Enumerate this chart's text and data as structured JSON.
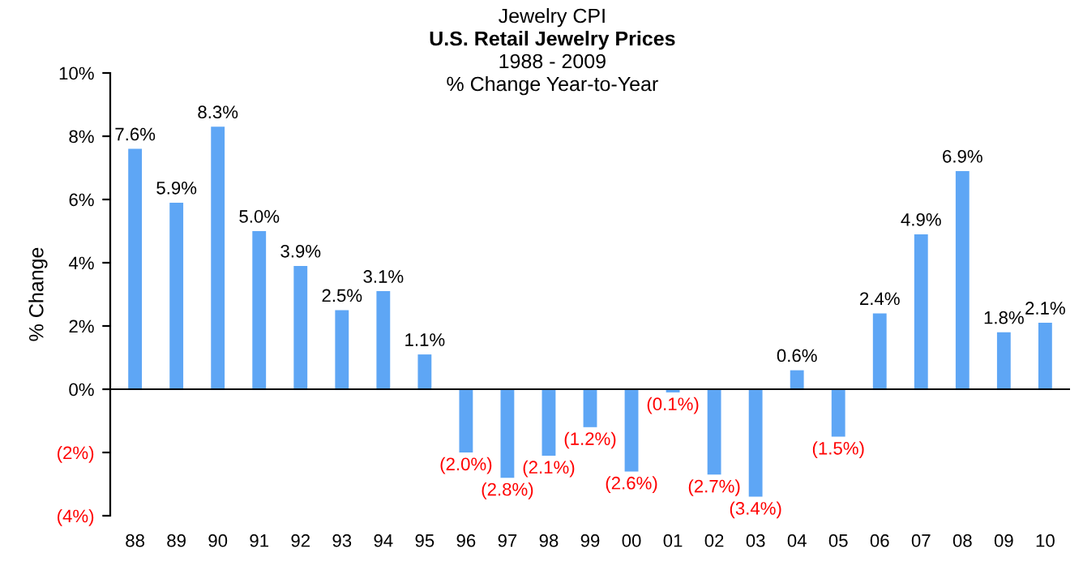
{
  "chart_data": {
    "type": "bar",
    "title": "U.S. Retail Jewelry Prices",
    "subtitle": "1988 - 2009\n% Change Year-to-Year",
    "annotations": [
      "Jewelry CPI"
    ],
    "ylabel": "% Change",
    "categories": [
      "88",
      "89",
      "90",
      "91",
      "92",
      "93",
      "94",
      "95",
      "96",
      "97",
      "98",
      "99",
      "00",
      "01",
      "02",
      "03",
      "04",
      "05",
      "06",
      "07",
      "08",
      "09",
      "10"
    ],
    "values": [
      7.6,
      5.9,
      8.3,
      5.0,
      3.9,
      2.5,
      3.1,
      1.1,
      -2.0,
      -2.8,
      -2.1,
      -1.2,
      -2.6,
      -0.1,
      -2.7,
      -3.4,
      0.6,
      -1.5,
      2.4,
      4.9,
      6.9,
      1.8,
      2.1
    ],
    "value_labels": [
      "7.6%",
      "5.9%",
      "8.3%",
      "5.0%",
      "3.9%",
      "2.5%",
      "3.1%",
      "1.1%",
      "(2.0%)",
      "(2.8%)",
      "(2.1%)",
      "(1.2%)",
      "(2.6%)",
      "(0.1%)",
      "(2.7%)",
      "(3.4%)",
      "0.6%",
      "(1.5%)",
      "2.4%",
      "4.9%",
      "6.9%",
      "1.8%",
      "2.1%"
    ],
    "color": "#5ea6f5",
    "ylim": [
      -4,
      10
    ],
    "yticks": [
      {
        "value": -4,
        "label": "(4%)"
      },
      {
        "value": -2,
        "label": "(2%)"
      },
      {
        "value": 0,
        "label": "0%"
      },
      {
        "value": 2,
        "label": "2%"
      },
      {
        "value": 4,
        "label": "4%"
      },
      {
        "value": 6,
        "label": "6%"
      },
      {
        "value": 8,
        "label": "8%"
      },
      {
        "value": 10,
        "label": "10%"
      }
    ],
    "ref_lines": [
      {
        "axis": "y",
        "value": 0,
        "color": "#000000"
      }
    ],
    "grid": false,
    "legend": false
  }
}
